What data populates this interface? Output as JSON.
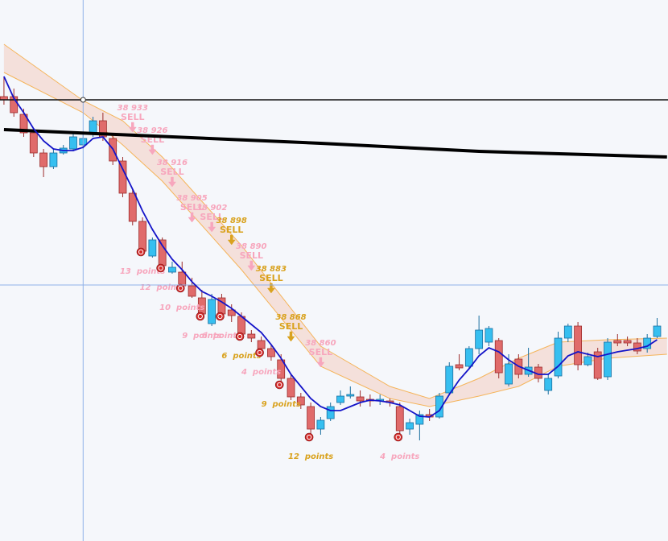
{
  "chart_data": {
    "type": "candlestick",
    "xlim": [
      -0.4,
      67.1
    ],
    "ylim": [
      38805,
      38973
    ],
    "up_color": "#36bff0",
    "up_edge": "#1a6fa0",
    "down_color": "#e06b6b",
    "down_edge": "#9c2c2c",
    "open": [
      38943,
      38943,
      38937.5,
      38931.75,
      38925.5,
      38921.25,
      38925.5,
      38926.75,
      38928,
      38931.75,
      38935.5,
      38930,
      38923,
      38913,
      38904.25,
      38893.5,
      38898.5,
      38888.5,
      38888.5,
      38884.25,
      38880.5,
      38872.5,
      38880.5,
      38876.75,
      38874.75,
      38869.25,
      38867.25,
      38864.75,
      38861.25,
      38855.5,
      38849.75,
      38846.75,
      38839.75,
      38843,
      38848,
      38850,
      38849.75,
      38849,
      38848.5,
      38848.5,
      38846.75,
      38839.75,
      38841.25,
      38844.25,
      38843.5,
      38851,
      38859.75,
      38859.25,
      38864.75,
      38866.75,
      38867.25,
      38853.75,
      38861.5,
      38856.75,
      38859,
      38851.75,
      38856.25,
      38868,
      38871.75,
      38859.75,
      38863.75,
      38856,
      38867.25,
      38867.25,
      38866.5,
      38864.75,
      38868.5
    ],
    "high": [
      38949.25,
      38945.5,
      38939.25,
      38933,
      38926.75,
      38926.75,
      38928,
      38931.75,
      38931.75,
      38936.75,
      38938,
      38931.75,
      38924.25,
      38914.25,
      38905.5,
      38899.25,
      38899.25,
      38891.75,
      38891.75,
      38886.75,
      38883,
      38881.75,
      38881.75,
      38878.5,
      38876,
      38870.5,
      38868.5,
      38866,
      38863,
      38856.75,
      38851,
      38848,
      38843.5,
      38848,
      38851.75,
      38853,
      38851.75,
      38850.5,
      38850.5,
      38849.25,
      38848,
      38843,
      38845.5,
      38846,
      38851,
      38860.5,
      38863,
      38865.5,
      38875,
      38871.75,
      38868,
      38863,
      38863,
      38865,
      38860,
      38856.75,
      38870,
      38872.5,
      38873,
      38863.5,
      38865,
      38868,
      38869.25,
      38868.5,
      38868,
      38869.25,
      38874.25
    ],
    "low": [
      38940.5,
      38936.75,
      38930.5,
      38924.25,
      38918,
      38920.5,
      38925,
      38926,
      38926.75,
      38930.5,
      38929.25,
      38921.75,
      38911.75,
      38903,
      38894.25,
      38893,
      38889.25,
      38888,
      38883,
      38880.5,
      38874.25,
      38871.75,
      38874.25,
      38873,
      38868,
      38866.75,
      38863,
      38861,
      38853,
      38848.75,
      38846,
      38836.75,
      38838,
      38842.25,
      38847.25,
      38849.25,
      38846.75,
      38846.75,
      38847.25,
      38846.75,
      38836.75,
      38838,
      38836.25,
      38842.25,
      38843,
      38850.5,
      38858,
      38858.5,
      38863,
      38865.5,
      38855.5,
      38853,
      38855.5,
      38856,
      38854.25,
      38850.5,
      38855.5,
      38866.75,
      38858,
      38859.25,
      38855,
      38855,
      38865.5,
      38865.5,
      38863,
      38863.5,
      38868
    ],
    "close": [
      38942,
      38938,
      38931.75,
      38925.5,
      38921.25,
      38925.5,
      38927,
      38930.5,
      38930,
      38935.5,
      38930.5,
      38923,
      38913,
      38904.25,
      38895,
      38898.5,
      38890.5,
      38890,
      38884.25,
      38881,
      38875.5,
      38880,
      38875.5,
      38875,
      38869.25,
      38868,
      38864.75,
      38862.25,
      38855.5,
      38849.75,
      38847.25,
      38839.75,
      38842.5,
      38846.75,
      38850,
      38850.5,
      38848.5,
      38848.5,
      38849,
      38848,
      38839.25,
      38841.75,
      38844.25,
      38843.5,
      38850,
      38859.25,
      38858.75,
      38864.75,
      38870.5,
      38871,
      38857.25,
      38860,
      38856.75,
      38859,
      38855.5,
      38855.5,
      38868,
      38871.75,
      38859.75,
      38862.25,
      38855.5,
      38866.75,
      38866.5,
      38866.5,
      38864,
      38868,
      38871.75
    ],
    "ma": {
      "color": "#1414c8",
      "values": [
        38949.25,
        38942.5,
        38938,
        38933,
        38929.25,
        38926.75,
        38926.25,
        38926.25,
        38927.25,
        38930,
        38930.5,
        38926.75,
        38920.5,
        38914.25,
        38907.5,
        38901.75,
        38896.75,
        38892.5,
        38889.25,
        38885.5,
        38882.5,
        38881,
        38879.25,
        38877.25,
        38874.75,
        38872.25,
        38869.75,
        38866,
        38861.75,
        38856.75,
        38853,
        38849.25,
        38846.75,
        38845.5,
        38845.5,
        38846.75,
        38848,
        38848.75,
        38848.5,
        38848,
        38847.25,
        38845.5,
        38843.75,
        38843.5,
        38845.5,
        38850.5,
        38855,
        38858.5,
        38862.5,
        38865,
        38863.75,
        38861.25,
        38859.25,
        38858,
        38856.75,
        38856.75,
        38859.25,
        38862.5,
        38863.75,
        38863,
        38862.25,
        38863,
        38863.75,
        38864.25,
        38864.75,
        38865.5,
        38867.5
      ]
    },
    "band": {
      "color": "#f5b45a",
      "fill": "#f4c4b4",
      "x": [
        0,
        8,
        12,
        16,
        24,
        32,
        39,
        43,
        48,
        52,
        56,
        61,
        67
      ],
      "upper": [
        38959.25,
        38941.75,
        38935.5,
        38924.25,
        38896.75,
        38865.5,
        38853,
        38849.25,
        38855.5,
        38861.75,
        38866.75,
        38867.5,
        38868
      ],
      "lower": [
        38950.5,
        38938,
        38928,
        38916.75,
        38889.25,
        38859.25,
        38849.25,
        38846.75,
        38850,
        38853,
        38859.25,
        38861.75,
        38863
      ]
    },
    "level": {
      "value": 38942,
      "color": "#111111"
    },
    "trend": {
      "color": "#000000",
      "x": [
        0,
        32,
        48,
        67
      ],
      "values": [
        38932.75,
        38928.5,
        38926,
        38924.25
      ]
    },
    "crosshair": {
      "color": "#8fb0e8",
      "x": 8,
      "value": 38884.5
    },
    "signals": [
      {
        "label": "38 933",
        "side": "SELL",
        "x": 13,
        "price": 38933,
        "color": "#f7a6bd"
      },
      {
        "label": "38 926",
        "side": "SELL",
        "x": 15,
        "price": 38926,
        "color": "#f7a6bd"
      },
      {
        "label": "38 916",
        "side": "SELL",
        "x": 17,
        "price": 38916,
        "color": "#f7a6bd"
      },
      {
        "label": "38 905",
        "side": "SELL",
        "x": 19,
        "price": 38905,
        "color": "#f7a6bd"
      },
      {
        "label": "38 902",
        "side": "SELL",
        "x": 21,
        "price": 38902,
        "color": "#f7a6bd"
      },
      {
        "label": "38 898",
        "side": "SELL",
        "x": 23,
        "price": 38898,
        "color": "#d9a21e"
      },
      {
        "label": "38 890",
        "side": "SELL",
        "x": 25,
        "price": 38890,
        "color": "#f7a6bd"
      },
      {
        "label": "38 883",
        "side": "SELL",
        "x": 27,
        "price": 38883,
        "color": "#d9a21e"
      },
      {
        "label": "38 868",
        "side": "SELL",
        "x": 29,
        "price": 38868,
        "color": "#d9a21e"
      },
      {
        "label": "38 860",
        "side": "SELL",
        "x": 32,
        "price": 38860,
        "color": "#f7a6bd"
      }
    ],
    "exits": [
      {
        "label": "13  points",
        "x": 14,
        "color": "#f7a6bd"
      },
      {
        "label": "12  points",
        "x": 16,
        "color": "#f7a6bd"
      },
      {
        "label": "10  points",
        "x": 18,
        "color": "#f7a6bd"
      },
      {
        "label": "9  points",
        "x": 20,
        "color": "#f7a6bd"
      },
      {
        "label": "6  points",
        "x": 22,
        "color": "#f7a6bd"
      },
      {
        "label": "6  points",
        "x": 24,
        "color": "#d9a21e"
      },
      {
        "label": "4  points",
        "x": 26,
        "color": "#f7a6bd"
      },
      {
        "label": "9  points",
        "x": 28,
        "color": "#d9a21e"
      },
      {
        "label": "12  points",
        "x": 31,
        "color": "#d9a21e"
      },
      {
        "label": "4  points",
        "x": 40,
        "color": "#f7a6bd"
      }
    ]
  }
}
